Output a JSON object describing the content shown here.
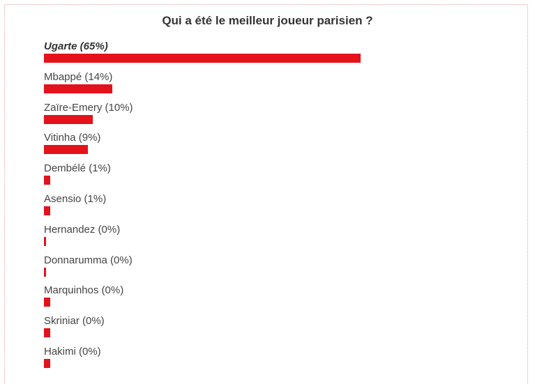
{
  "poll": {
    "title": "Qui a été le meilleur joueur parisien ?",
    "accent_color": "#e3121b"
  },
  "chart_data": {
    "type": "bar",
    "orientation": "horizontal",
    "title": "Qui a été le meilleur joueur parisien ?",
    "categories": [
      "Ugarte",
      "Mbappé",
      "Zaïre-Emery",
      "Vitinha",
      "Dembélé",
      "Asensio",
      "Hernandez",
      "Donnarumma",
      "Marquinhos",
      "Skriniar",
      "Hakimi"
    ],
    "values": [
      65,
      14,
      10,
      9,
      1,
      1,
      0,
      0,
      0,
      0,
      0
    ],
    "labels": [
      "Ugarte (65%)",
      "Mbappé (14%)",
      "Zaïre-Emery (10%)",
      "Vitinha (9%)",
      "Dembélé (1%)",
      "Asensio (1%)",
      "Hernandez (0%)",
      "Donnarumma (0%)",
      "Marquinhos (0%)",
      "Skriniar (0%)",
      "Hakimi (0%)"
    ],
    "unit": "%",
    "xlim": [
      0,
      65
    ],
    "grid": false,
    "highlight": "Ugarte"
  }
}
